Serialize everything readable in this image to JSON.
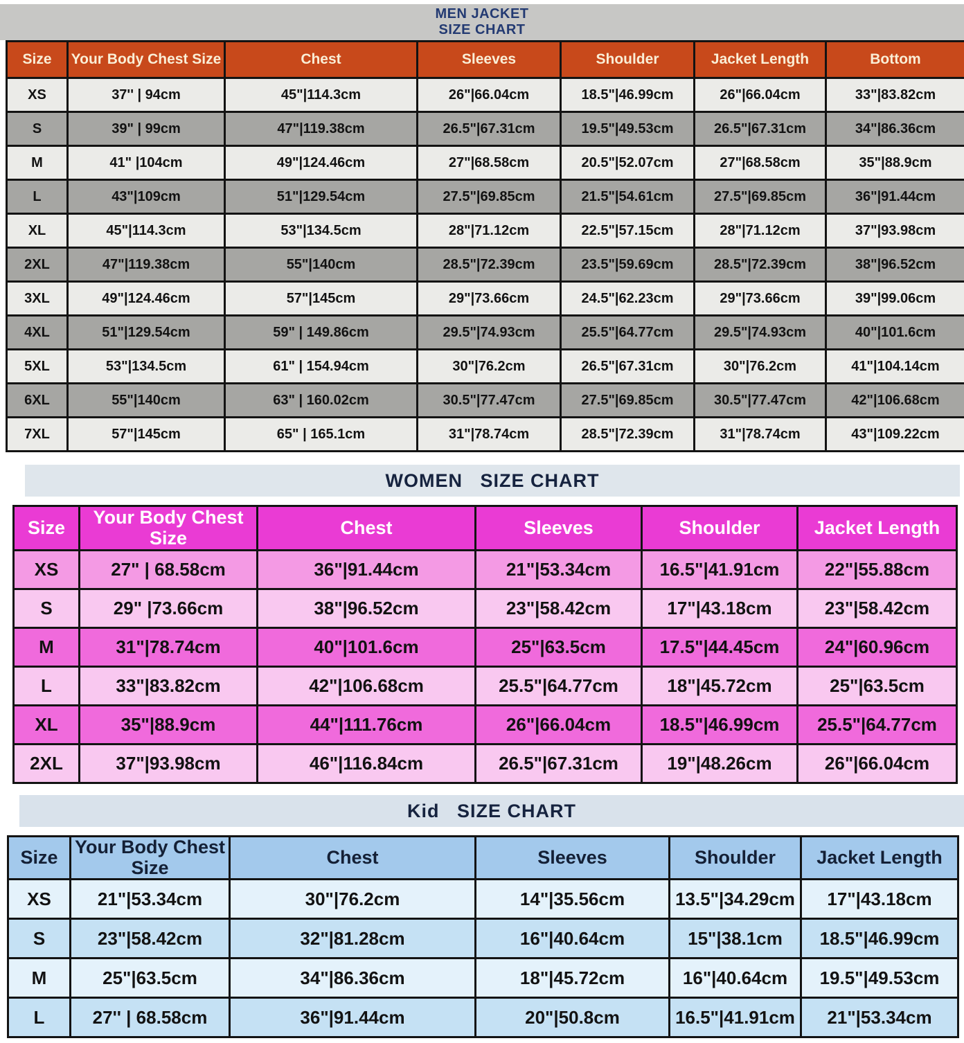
{
  "colors": {
    "page_bg": "#ffffff",
    "border_color": "#131313",
    "cell_text": "#121212",
    "men_band_bg": "#c7c7c5",
    "men_title_text": "#233a72",
    "men_header_bg": "#c8491b",
    "men_header_text": "#faeed6",
    "men_row_light": "#ebebe8",
    "men_row_dark": "#a6a6a3",
    "women_band_bg": "#dfe6ec",
    "sub_title_text": "#16233f",
    "women_header_bg": "#ea3bd4",
    "women_header_text": "#ffffff",
    "women_row_first": "#f49ae4",
    "women_row_strong": "#f06adc",
    "women_row_light": "#f9c8f0",
    "kid_band_bg": "#d9e2eb",
    "kid_header_bg": "#a3c9ec",
    "kid_header_text": "#142036",
    "kid_row_pale": "#e4f2fb",
    "kid_row_blue": "#c5e1f4"
  },
  "men": {
    "title_line1": "MEN JACKET",
    "title_line2": "SIZE CHART",
    "headers": [
      "Size",
      "Your Body Chest Size",
      "Chest",
      "Sleeves",
      "Shoulder",
      "Jacket Length",
      "Bottom"
    ],
    "rows": [
      [
        "XS",
        "37'' | 94cm",
        "45\"|114.3cm",
        "26\"|66.04cm",
        "18.5\"|46.99cm",
        "26\"|66.04cm",
        "33\"|83.82cm"
      ],
      [
        "S",
        "39\" | 99cm",
        "47\"|119.38cm",
        "26.5\"|67.31cm",
        "19.5\"|49.53cm",
        "26.5\"|67.31cm",
        "34\"|86.36cm"
      ],
      [
        "M",
        "41\" |104cm",
        "49\"|124.46cm",
        "27\"|68.58cm",
        "20.5\"|52.07cm",
        "27\"|68.58cm",
        "35\"|88.9cm"
      ],
      [
        "L",
        "43\"|109cm",
        "51\"|129.54cm",
        "27.5\"|69.85cm",
        "21.5\"|54.61cm",
        "27.5\"|69.85cm",
        "36\"|91.44cm"
      ],
      [
        "XL",
        "45\"|114.3cm",
        "53\"|134.5cm",
        "28\"|71.12cm",
        "22.5\"|57.15cm",
        "28\"|71.12cm",
        "37\"|93.98cm"
      ],
      [
        "2XL",
        "47\"|119.38cm",
        "55\"|140cm",
        "28.5\"|72.39cm",
        "23.5\"|59.69cm",
        "28.5\"|72.39cm",
        "38\"|96.52cm"
      ],
      [
        "3XL",
        "49\"|124.46cm",
        "57\"|145cm",
        "29\"|73.66cm",
        "24.5\"|62.23cm",
        "29\"|73.66cm",
        "39\"|99.06cm"
      ],
      [
        "4XL",
        "51\"|129.54cm",
        "59\" | 149.86cm",
        "29.5\"|74.93cm",
        "25.5\"|64.77cm",
        "29.5\"|74.93cm",
        "40\"|101.6cm"
      ],
      [
        "5XL",
        "53\"|134.5cm",
        "61\" | 154.94cm",
        "30\"|76.2cm",
        "26.5\"|67.31cm",
        "30\"|76.2cm",
        "41\"|104.14cm"
      ],
      [
        "6XL",
        "55\"|140cm",
        "63\" | 160.02cm",
        "30.5\"|77.47cm",
        "27.5\"|69.85cm",
        "30.5\"|77.47cm",
        "42\"|106.68cm"
      ],
      [
        "7XL",
        "57\"|145cm",
        "65\" | 165.1cm",
        "31\"|78.74cm",
        "28.5\"|72.39cm",
        "31\"|78.74cm",
        "43\"|109.22cm"
      ]
    ]
  },
  "women": {
    "title": "WOMEN   SIZE CHART",
    "headers": [
      "Size",
      "Your Body Chest Size",
      "Chest",
      "Sleeves",
      "Shoulder",
      "Jacket Length"
    ],
    "rows": [
      [
        "XS",
        "27\" | 68.58cm",
        "36\"|91.44cm",
        "21\"|53.34cm",
        "16.5\"|41.91cm",
        "22\"|55.88cm"
      ],
      [
        "S",
        "29\" |73.66cm",
        "38\"|96.52cm",
        "23\"|58.42cm",
        "17\"|43.18cm",
        "23\"|58.42cm"
      ],
      [
        "M",
        "31\"|78.74cm",
        "40\"|101.6cm",
        "25\"|63.5cm",
        "17.5\"|44.45cm",
        "24\"|60.96cm"
      ],
      [
        "L",
        "33\"|83.82cm",
        "42\"|106.68cm",
        "25.5\"|64.77cm",
        "18\"|45.72cm",
        "25\"|63.5cm"
      ],
      [
        "XL",
        "35\"|88.9cm",
        "44\"|111.76cm",
        "26\"|66.04cm",
        "18.5\"|46.99cm",
        "25.5\"|64.77cm"
      ],
      [
        "2XL",
        "37\"|93.98cm",
        "46\"|116.84cm",
        "26.5\"|67.31cm",
        "19\"|48.26cm",
        "26\"|66.04cm"
      ]
    ]
  },
  "kid": {
    "title": "Kid   SIZE CHART",
    "headers": [
      "Size",
      "Your Body Chest Size",
      "Chest",
      "Sleeves",
      "Shoulder",
      "Jacket Length"
    ],
    "rows": [
      [
        "XS",
        "21\"|53.34cm",
        "30\"|76.2cm",
        "14\"|35.56cm",
        "13.5\"|34.29cm",
        "17\"|43.18cm"
      ],
      [
        "S",
        "23\"|58.42cm",
        "32\"|81.28cm",
        "16\"|40.64cm",
        "15\"|38.1cm",
        "18.5\"|46.99cm"
      ],
      [
        "M",
        "25\"|63.5cm",
        "34\"|86.36cm",
        "18\"|45.72cm",
        "16\"|40.64cm",
        "19.5\"|49.53cm"
      ],
      [
        "L",
        "27'' | 68.58cm",
        "36\"|91.44cm",
        "20\"|50.8cm",
        "16.5\"|41.91cm",
        "21\"|53.34cm"
      ]
    ]
  }
}
